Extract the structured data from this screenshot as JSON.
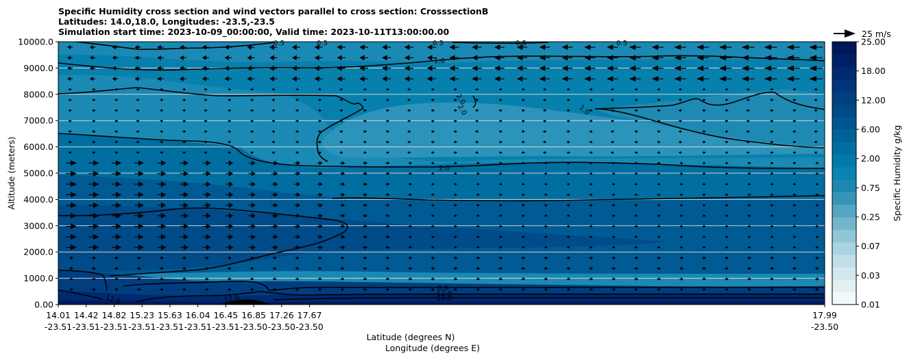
{
  "chart_data": {
    "type": "contour",
    "title": [
      "Specific Humidity cross section and wind vectors parallel to cross section: CrosssectionB",
      "Latitudes: 14.0,18.0, Longitudes: -23.5,-23.5",
      "Simulation start time: 2023-10-09_00:00:00, Valid time: 2023-10-11T13:00:00.00"
    ],
    "ylabel": "Altitude (meters)",
    "xlabel_lat": "Latitude (degrees N)",
    "xlabel_lon": "Longitude (degrees E)",
    "ylim": [
      0,
      10000
    ],
    "yticks": [
      "0.00",
      "1000.0",
      "2000.0",
      "3000.0",
      "4000.0",
      "5000.0",
      "6000.0",
      "7000.0",
      "8000.0",
      "9000.0",
      "10000.0"
    ],
    "xticks": [
      {
        "lat": "14.01",
        "lon": "-23.51"
      },
      {
        "lat": "14.42",
        "lon": "-23.51"
      },
      {
        "lat": "14.82",
        "lon": "-23.51"
      },
      {
        "lat": "15.23",
        "lon": "-23.51"
      },
      {
        "lat": "15.63",
        "lon": "-23.51"
      },
      {
        "lat": "16.04",
        "lon": "-23.51"
      },
      {
        "lat": "16.45",
        "lon": "-23.51"
      },
      {
        "lat": "16.85",
        "lon": "-23.50"
      },
      {
        "lat": "17.26",
        "lon": "-23.50"
      },
      {
        "lat": "17.67",
        "lon": "-23.50"
      },
      {
        "lat": "17.99",
        "lon": "-23.50"
      }
    ],
    "grid": "horizontal",
    "contour_labels": [
      "0.5",
      "0.5",
      "0.5",
      "0.5",
      "0.5",
      "1.0",
      "1.0",
      "2.0",
      "2.0",
      "2.0",
      "8.0",
      "12.0",
      "12.0",
      "12.0",
      "16.0"
    ],
    "colorbar": {
      "label": "Specific Humidity g/kg",
      "ticks": [
        "0.01",
        "0.03",
        "0.07",
        "0.25",
        "0.75",
        "2.00",
        "6.00",
        "12.00",
        "18.00",
        "25.00"
      ],
      "colors": [
        "#f2f9fb",
        "#e2f0f4",
        "#d2e8ef",
        "#c0dfe8",
        "#a9d3e0",
        "#91c6d7",
        "#74b5cc",
        "#56a5c2",
        "#3895b8",
        "#1c88b0",
        "#0784b0",
        "#007aa8",
        "#006fa0",
        "#006398",
        "#005690",
        "#004a88",
        "#003f80",
        "#00357a",
        "#002a70",
        "#002066",
        "#001759"
      ]
    },
    "quiver_key": {
      "label": "25 m/s",
      "value": 25
    }
  }
}
